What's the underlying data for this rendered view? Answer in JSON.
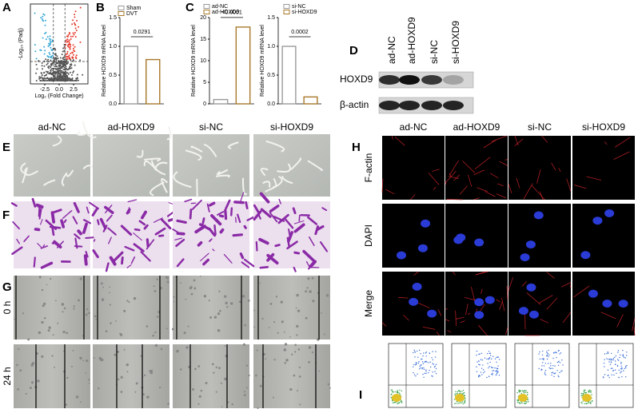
{
  "panel_labels": [
    "A",
    "B",
    "C",
    "D",
    "E",
    "F",
    "G",
    "H",
    "I"
  ],
  "volcano": {
    "ylabel": "-Log₁₀ (Padj)",
    "xlabel": "Log₂ (Fold Change)",
    "xlim": [
      -5,
      5
    ],
    "xticks": [
      {
        "value": -2.5,
        "label": "-2.5"
      },
      {
        "value": 0,
        "label": "0.0"
      },
      {
        "value": 2.5,
        "label": "2.5"
      }
    ]
  },
  "chart_data": [
    {
      "type": "bar",
      "categories": [
        "Sham",
        "DVT"
      ],
      "values": [
        1.0,
        0.77
      ],
      "colors": [
        "#9a9a9a",
        "#a8782a"
      ],
      "ylabel": "Relative HOXD9 mRNA level",
      "ylim": [
        0,
        1.5
      ],
      "yticks": [
        {
          "value": 0,
          "label": "0.0"
        },
        {
          "value": 0.5,
          "label": "0.5"
        },
        {
          "value": 1.0,
          "label": "1.0"
        },
        {
          "value": 1.5,
          "label": "1.5"
        }
      ],
      "annotation": "0.0291"
    },
    {
      "type": "bar",
      "categories": [
        "ad-NC",
        "ad-HOXD9"
      ],
      "values": [
        1.0,
        17.8
      ],
      "colors": [
        "#9a9a9a",
        "#a8782a"
      ],
      "ylabel": "Relative HOXD9 mRNA level",
      "ylim": [
        0,
        20
      ],
      "yticks": [
        0,
        5,
        10,
        15,
        20
      ],
      "annotation": "<0.0001"
    },
    {
      "type": "bar",
      "categories": [
        "si-NC",
        "si-HOXD9"
      ],
      "values": [
        1.0,
        0.12
      ],
      "colors": [
        "#9a9a9a",
        "#a8782a"
      ],
      "ylabel": "Relative HOXD9 mRNA level",
      "ylim": [
        0,
        1.5
      ],
      "yticks": [
        {
          "value": 0,
          "label": "0.0"
        },
        {
          "value": 0.5,
          "label": "0.5"
        },
        {
          "value": 1.0,
          "label": "1.0"
        },
        {
          "value": 1.5,
          "label": "1.5"
        }
      ],
      "annotation": "0.0002"
    }
  ],
  "groups": [
    "ad-NC",
    "ad-HOXD9",
    "si-NC",
    "si-HOXD9"
  ],
  "blot_rows": [
    "HOXD9",
    "β-actin"
  ],
  "migration_rows": [
    "0 h",
    "24 h"
  ],
  "staining_rows": [
    "F-actin",
    "DAPI",
    "Merge"
  ]
}
